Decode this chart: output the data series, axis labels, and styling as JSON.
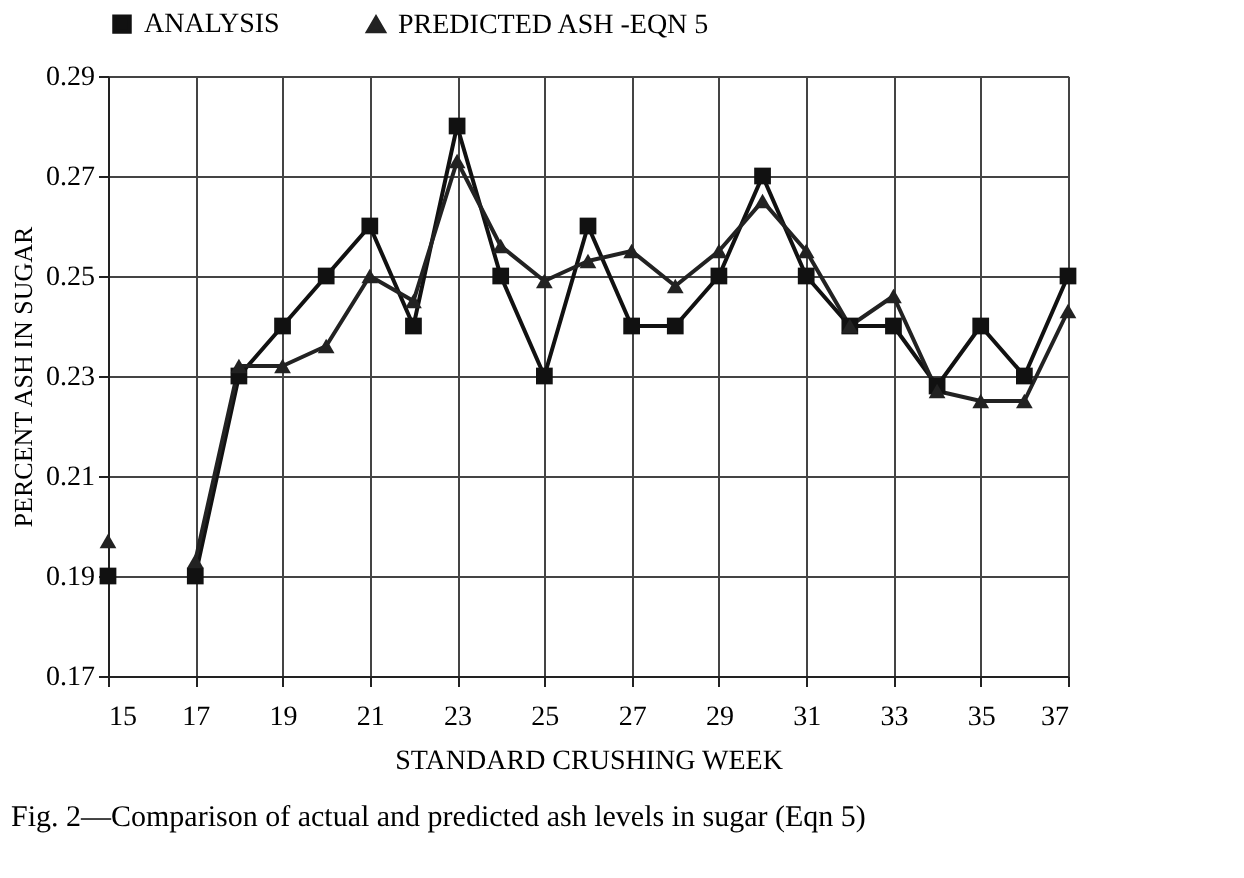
{
  "chart_data": {
    "type": "line",
    "title": "Fig. 2—Comparison of actual and predicted ash levels in sugar (Eqn 5)",
    "xlabel": "STANDARD CRUSHING WEEK",
    "ylabel": "PERCENT ASH IN SUGAR",
    "x": [
      15,
      16,
      17,
      18,
      19,
      20,
      21,
      22,
      23,
      24,
      25,
      26,
      27,
      28,
      29,
      30,
      31,
      32,
      33,
      34,
      35,
      36,
      37
    ],
    "series": [
      {
        "name": "ANALYSIS",
        "color": "#111111",
        "marker": "square",
        "values": [
          0.19,
          null,
          0.19,
          0.23,
          0.24,
          0.25,
          0.26,
          0.24,
          0.28,
          0.25,
          0.23,
          0.26,
          0.24,
          0.24,
          0.25,
          0.27,
          0.25,
          0.24,
          0.24,
          0.228,
          0.24,
          0.23,
          0.25
        ]
      },
      {
        "name": "PREDICTED ASH -EQN 5",
        "color": "#222222",
        "marker": "triangle",
        "values": [
          0.197,
          null,
          0.193,
          0.232,
          0.232,
          0.236,
          0.25,
          0.245,
          0.273,
          0.256,
          0.249,
          0.253,
          0.255,
          0.248,
          0.255,
          0.265,
          0.255,
          0.24,
          0.246,
          0.227,
          0.225,
          0.225,
          0.243
        ]
      }
    ],
    "xlim": [
      15,
      37
    ],
    "xticks": [
      15,
      17,
      19,
      21,
      23,
      25,
      27,
      29,
      31,
      33,
      35,
      37
    ],
    "ylim": [
      0.17,
      0.29
    ],
    "yticks": [
      0.17,
      0.19,
      0.21,
      0.23,
      0.25,
      0.27,
      0.29
    ],
    "grid": true,
    "legend": "top",
    "line_style": "solid"
  }
}
